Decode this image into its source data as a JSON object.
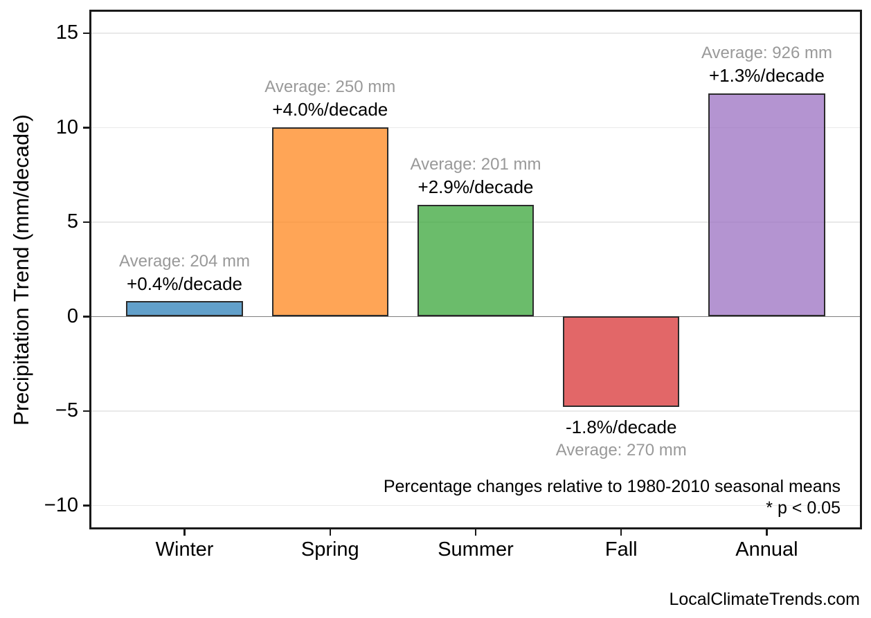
{
  "chart_data": {
    "type": "bar",
    "categories": [
      "Winter",
      "Spring",
      "Summer",
      "Fall",
      "Annual"
    ],
    "values": [
      0.8,
      10.0,
      5.9,
      -4.8,
      11.8
    ],
    "series_name": "Precipitation Trend",
    "title": "",
    "xlabel": "",
    "ylabel": "Precipitation Trend (mm/decade)",
    "yticks": [
      15,
      10,
      5,
      0,
      -5,
      -10
    ],
    "ytick_labels": [
      "15",
      "10",
      "5",
      "0",
      "−5",
      "−10"
    ],
    "ylim": [
      -11.16,
      16.13
    ],
    "xlim": [
      -0.64,
      4.64
    ],
    "bar_width_fraction": 0.8,
    "grid": true,
    "legend": false,
    "bar_fill_colors_rgba": [
      "rgba(31,119,180,0.7)",
      "rgba(255,127,14,0.7)",
      "rgba(44,160,44,0.7)",
      "rgba(214,39,40,0.7)",
      "rgba(148,103,189,0.7)"
    ],
    "bar_base_colors": [
      "#1f77b4",
      "#ff7f0e",
      "#2ca02c",
      "#d62728",
      "#9467bd"
    ],
    "bar_edge_color": "#2b2b2b",
    "annotations": [
      {
        "category": "Winter",
        "average_label": "Average: 204 mm",
        "percent_label": "+0.4%/decade",
        "placement": "above"
      },
      {
        "category": "Spring",
        "average_label": "Average: 250 mm",
        "percent_label": "+4.0%/decade",
        "placement": "above"
      },
      {
        "category": "Summer",
        "average_label": "Average: 201 mm",
        "percent_label": "+2.9%/decade",
        "placement": "above"
      },
      {
        "category": "Fall",
        "average_label": "Average: 270 mm",
        "percent_label": "-1.8%/decade",
        "placement": "below"
      },
      {
        "category": "Annual",
        "average_label": "Average: 926 mm",
        "percent_label": "+1.3%/decade",
        "placement": "above"
      }
    ],
    "note_line1": "Percentage changes relative to 1980-2010 seasonal means",
    "note_line2": "* p < 0.05",
    "watermark": "LocalClimateTrends.com",
    "colors": {
      "gridline": "#e9e9e9",
      "zero_line": "#7f7f7f",
      "spine": "#1a1a1a",
      "annotation_average_text": "#999999",
      "annotation_percent_text": "#000000",
      "tick_text": "#000000"
    }
  }
}
